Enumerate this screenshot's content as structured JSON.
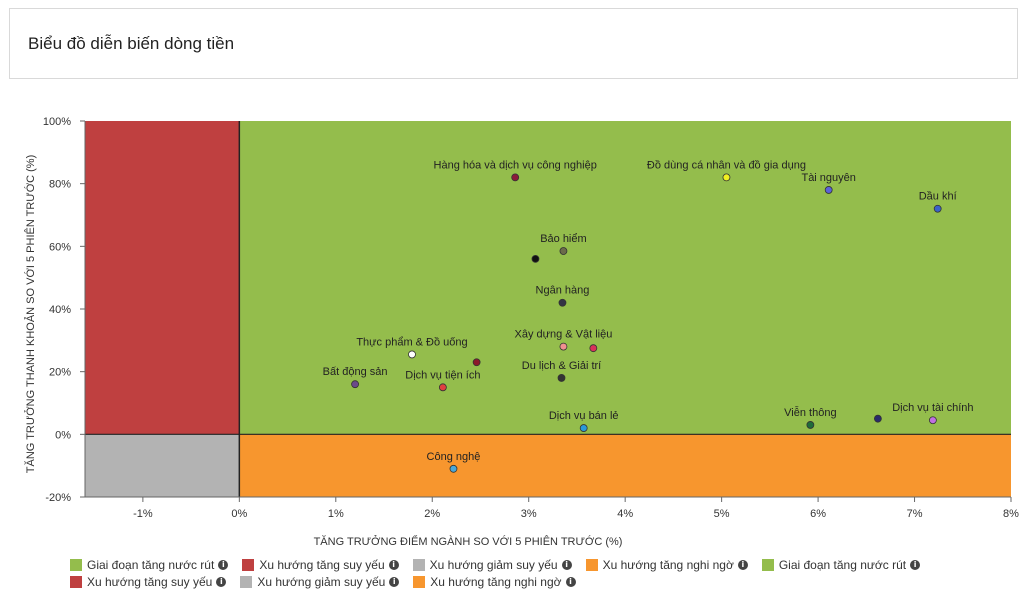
{
  "header": {
    "title": "Biểu đồ diễn biến dòng tiền"
  },
  "chart_data": {
    "type": "scatter",
    "title": "",
    "xlabel": "TĂNG TRƯỞNG ĐIỂM NGÀNH SO VỚI 5 PHIÊN TRƯỚC (%)",
    "ylabel": "TĂNG TRƯỞNG THANH KHOẢN SO VỚI 5 PHIÊN TRƯỚC (%)",
    "xlim": [
      -1.6,
      8
    ],
    "ylim": [
      -20,
      100
    ],
    "x_ticks": [
      -1,
      0,
      1,
      2,
      3,
      4,
      5,
      6,
      7,
      8
    ],
    "x_tick_labels": [
      "-1%",
      "0%",
      "1%",
      "2%",
      "3%",
      "4%",
      "5%",
      "6%",
      "7%",
      "8%"
    ],
    "y_ticks": [
      -20,
      0,
      20,
      40,
      60,
      80,
      100
    ],
    "y_tick_labels": [
      "-20%",
      "0%",
      "20%",
      "40%",
      "60%",
      "80%",
      "100%"
    ],
    "quadrants": [
      {
        "label": "Giai đoạn tăng nước rút",
        "color": "#94bd4c",
        "x_range": [
          0,
          8
        ],
        "y_range": [
          0,
          100
        ]
      },
      {
        "label": "Xu hướng tăng suy yếu",
        "color": "#bf4040",
        "x_range": [
          -1.6,
          0
        ],
        "y_range": [
          0,
          100
        ]
      },
      {
        "label": "Xu hướng giảm suy yếu",
        "color": "#b3b3b3",
        "x_range": [
          -1.6,
          0
        ],
        "y_range": [
          -20,
          0
        ]
      },
      {
        "label": "Xu hướng tăng nghi ngờ",
        "color": "#f7962e",
        "x_range": [
          0,
          8
        ],
        "y_range": [
          -20,
          0
        ]
      }
    ],
    "points": [
      {
        "name": "Hàng hóa và dịch vụ công nghiệp",
        "x": 2.86,
        "y": 82,
        "color": "#8b1a3a"
      },
      {
        "name": "Đồ dùng cá nhân và đồ gia dụng",
        "x": 5.05,
        "y": 82,
        "color": "#f0f020"
      },
      {
        "name": "Tài nguyên",
        "x": 6.11,
        "y": 78,
        "color": "#5b62d9"
      },
      {
        "name": "Dầu khí",
        "x": 7.24,
        "y": 72,
        "color": "#3a62c8"
      },
      {
        "name": "Bảo hiểm",
        "x": 3.36,
        "y": 58.5,
        "color": "#6b6b4a"
      },
      {
        "name": "",
        "x": 3.07,
        "y": 56,
        "color": "#111111"
      },
      {
        "name": "Ngân hàng",
        "x": 3.35,
        "y": 42,
        "color": "#333344"
      },
      {
        "name": "Xây dựng & Vật liệu",
        "x": 3.36,
        "y": 28,
        "color": "#f09090"
      },
      {
        "name": "",
        "x": 3.67,
        "y": 27.5,
        "color": "#d8325a"
      },
      {
        "name": "Thực phẩm & Đồ uống",
        "x": 1.79,
        "y": 25.5,
        "color": "#ffffff"
      },
      {
        "name": "",
        "x": 2.46,
        "y": 23,
        "color": "#8b1a2a"
      },
      {
        "name": "Bất động sản",
        "x": 1.2,
        "y": 16,
        "color": "#6b4a8a"
      },
      {
        "name": "Dịch vụ tiện ích",
        "x": 2.11,
        "y": 15,
        "color": "#e04040"
      },
      {
        "name": "Du lịch & Giải trí",
        "x": 3.34,
        "y": 18,
        "color": "#333333"
      },
      {
        "name": "Dịch vụ bán lẻ",
        "x": 3.57,
        "y": 2,
        "color": "#2a9ad9"
      },
      {
        "name": "Viễn thông",
        "x": 5.92,
        "y": 3,
        "color": "#1f6b3a"
      },
      {
        "name": "",
        "x": 6.62,
        "y": 5,
        "color": "#2a2a6a"
      },
      {
        "name": "Dịch vụ tài chính",
        "x": 7.19,
        "y": 4.5,
        "color": "#c070e0"
      },
      {
        "name": "Công nghệ",
        "x": 2.22,
        "y": -11,
        "color": "#4aa8d8"
      }
    ],
    "legend": [
      {
        "label": "Giai đoạn tăng nước rút",
        "color": "#94bd4c"
      },
      {
        "label": "Xu hướng tăng suy yếu",
        "color": "#bf4040"
      },
      {
        "label": "Xu hướng giảm suy yếu",
        "color": "#b3b3b3"
      },
      {
        "label": "Xu hướng tăng nghi ngờ",
        "color": "#f7962e"
      },
      {
        "label": "Giai đoạn tăng nước rút",
        "color": "#94bd4c"
      },
      {
        "label": "Xu hướng tăng suy yếu",
        "color": "#bf4040"
      },
      {
        "label": "Xu hướng giảm suy yếu",
        "color": "#b3b3b3"
      },
      {
        "label": "Xu hướng tăng nghi ngờ",
        "color": "#f7962e"
      }
    ],
    "legend_placement": "bottom",
    "grid": false
  }
}
